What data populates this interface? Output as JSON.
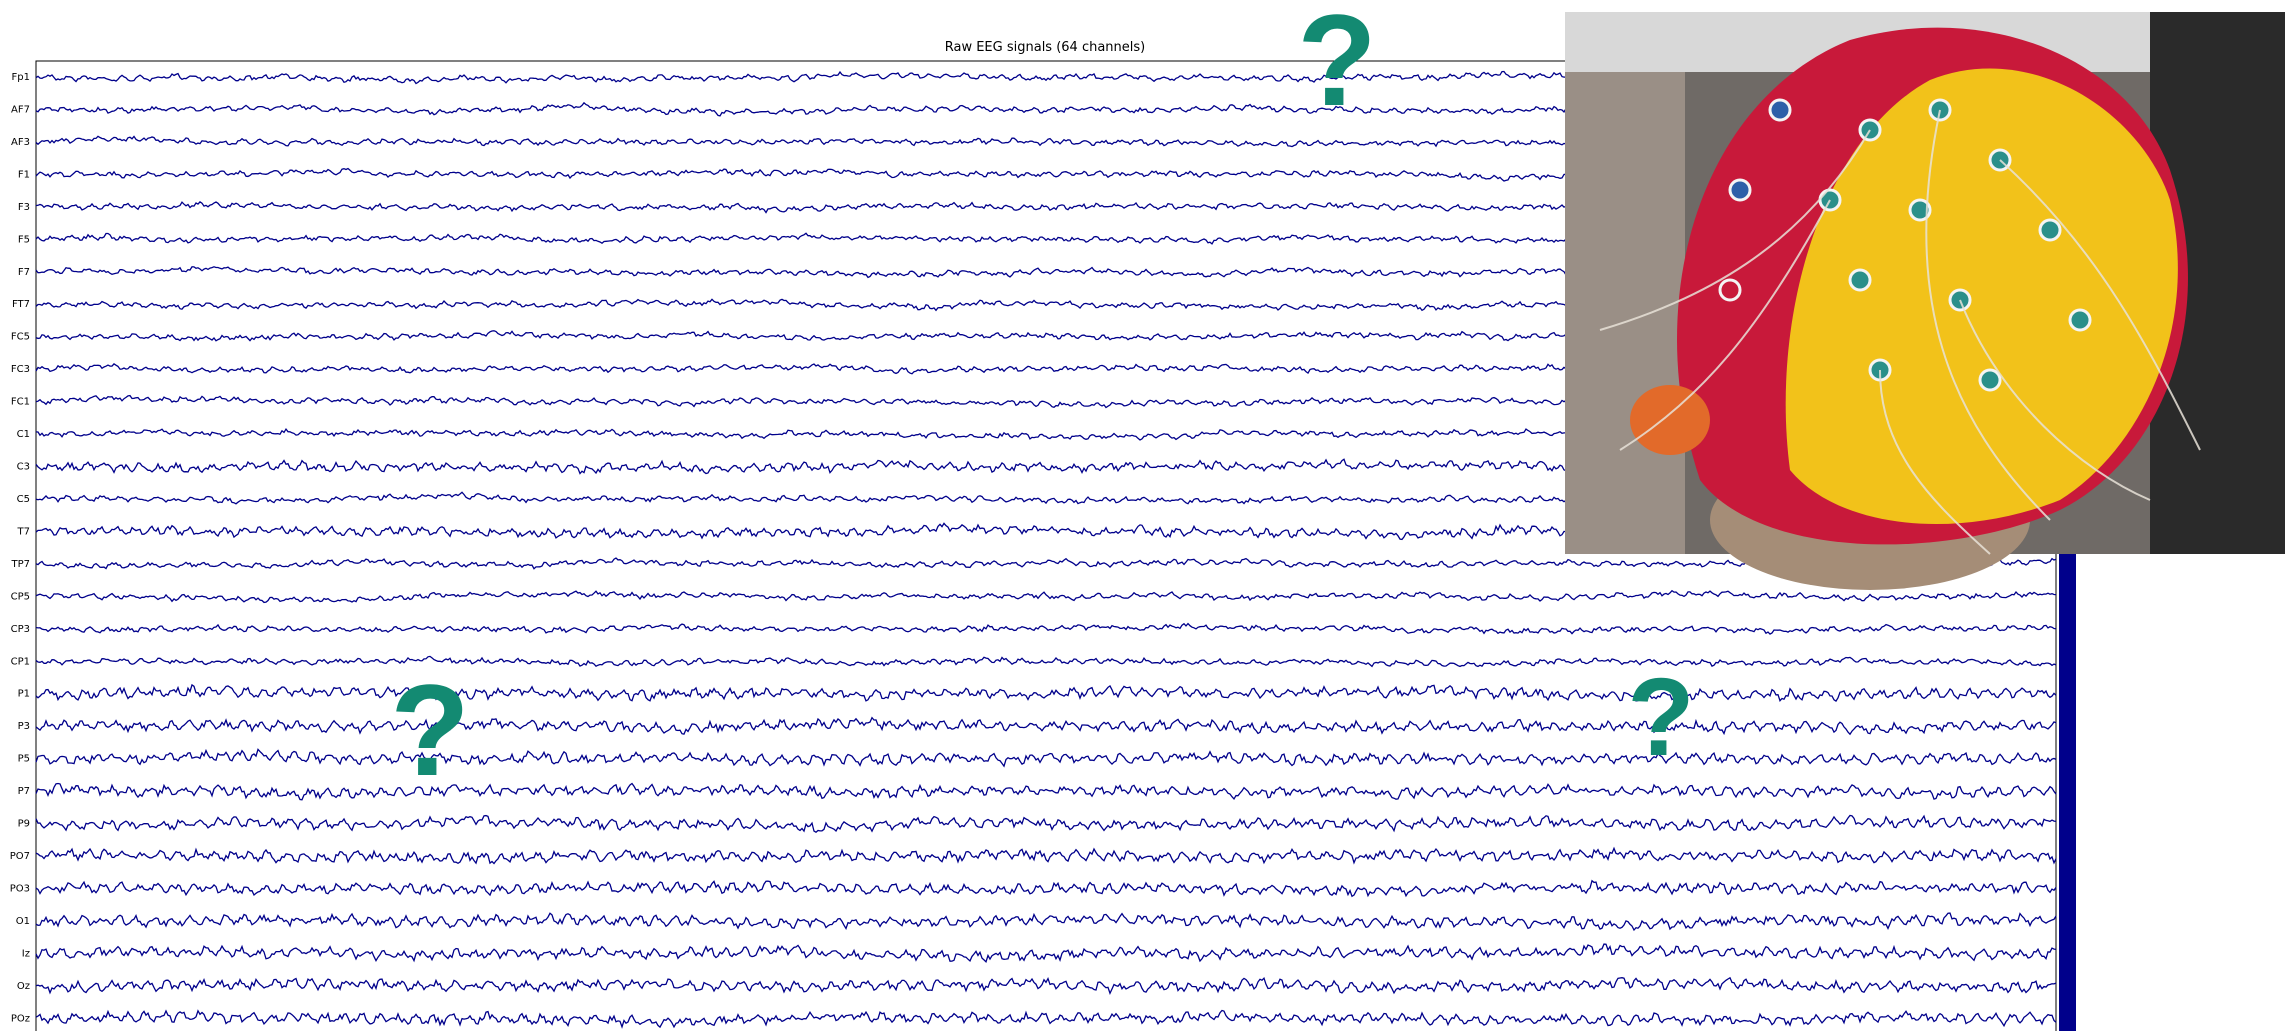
{
  "title": "Raw EEG signals (64 channels)",
  "channels": [
    "Fp1",
    "AF7",
    "AF3",
    "F1",
    "F3",
    "F5",
    "F7",
    "FT7",
    "FC5",
    "FC3",
    "FC1",
    "C1",
    "C3",
    "C5",
    "T7",
    "TP7",
    "CP5",
    "CP3",
    "CP1",
    "P1",
    "P3",
    "P5",
    "P7",
    "P9",
    "PO7",
    "PO3",
    "O1",
    "Iz",
    "Oz",
    "POz"
  ],
  "question_marks": [
    "?",
    "?",
    "?"
  ]
}
